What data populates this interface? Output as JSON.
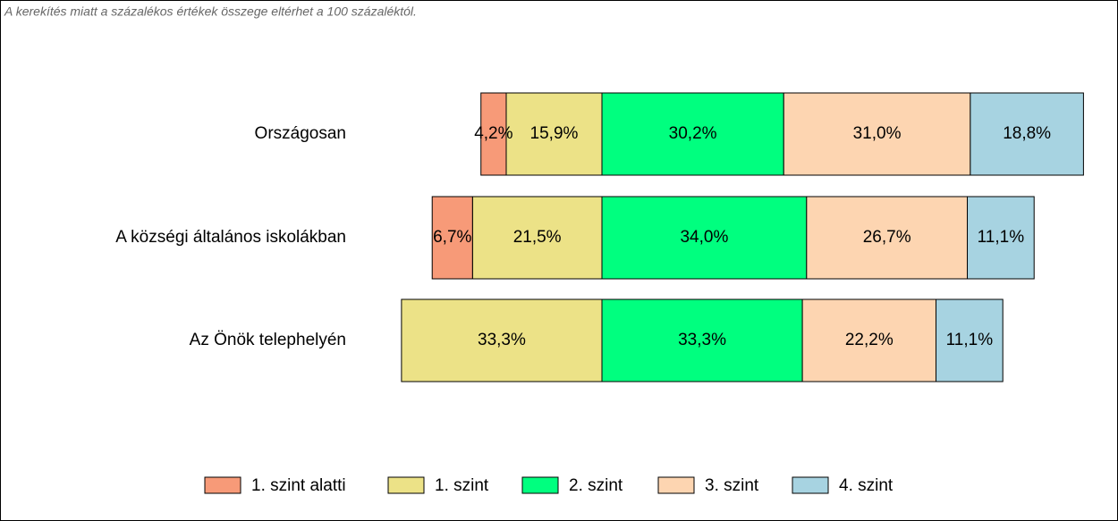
{
  "chart_data": {
    "type": "bar",
    "orientation": "horizontal",
    "note": "A kerekítés miatt a  százalékos értékek összege eltérhet a 100 százaléktól.",
    "categories": [
      "Országosan",
      "A községi általános iskolákban",
      "Az Önök telephelyén"
    ],
    "series": [
      {
        "name": "1. szint alatti",
        "color": "#f79a78",
        "values": [
          4.2,
          6.7,
          null
        ],
        "value_labels": [
          "4,2%",
          "6,7%",
          null
        ]
      },
      {
        "name": "1. szint",
        "color": "#ece287",
        "values": [
          15.9,
          21.5,
          33.3
        ],
        "value_labels": [
          "15,9%",
          "21,5%",
          "33,3%"
        ]
      },
      {
        "name": "2. szint",
        "color": "#00ff7f",
        "values": [
          30.2,
          34.0,
          33.3
        ],
        "value_labels": [
          "30,2%",
          "34,0%",
          "33,3%"
        ]
      },
      {
        "name": "3. szint",
        "color": "#fdd5b1",
        "values": [
          31.0,
          26.7,
          22.2
        ],
        "value_labels": [
          "31,0%",
          "26,7%",
          "22,2%"
        ]
      },
      {
        "name": "4. szint",
        "color": "#a7d3e1",
        "values": [
          18.8,
          11.1,
          11.1
        ],
        "value_labels": [
          "18,8%",
          "11,1%",
          "11,1%"
        ]
      }
    ]
  }
}
